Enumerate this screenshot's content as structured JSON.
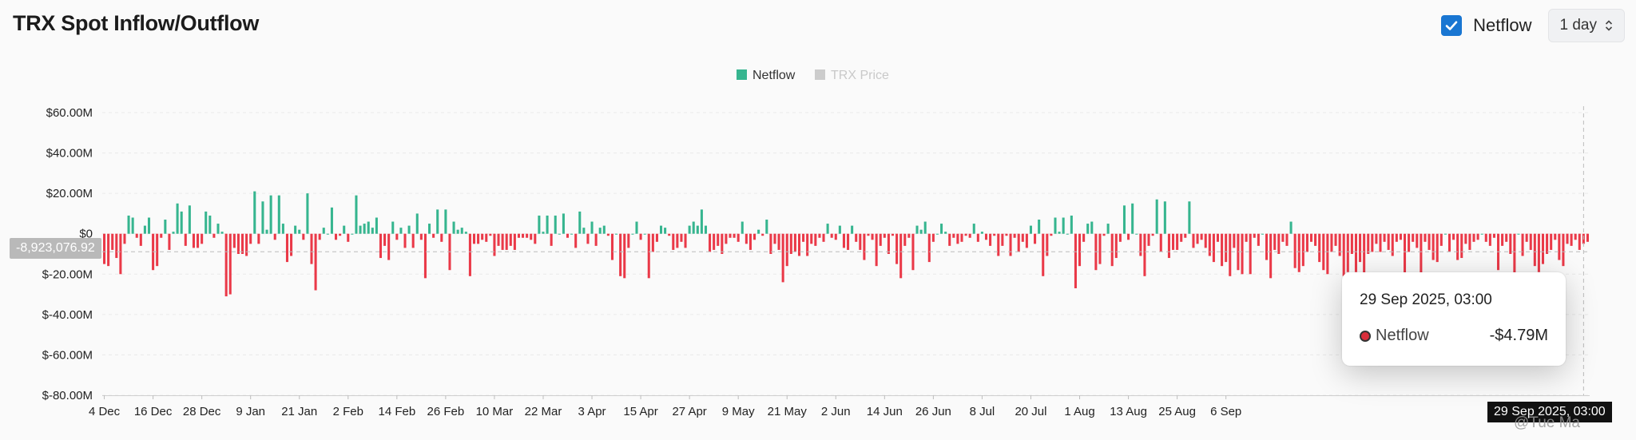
{
  "header": {
    "title": "TRX Spot Inflow/Outflow",
    "netflow_label": "Netflow",
    "netflow_checked": true,
    "interval_value": "1 day"
  },
  "legend": [
    {
      "label": "Netflow",
      "color": "#36b58f"
    },
    {
      "label": "TRX Price",
      "color": "#cccccc"
    }
  ],
  "tooltip": {
    "date": "29 Sep 2025, 03:00",
    "series": "Netflow",
    "value": "-$4.79M"
  },
  "crosshair": {
    "y_label": "-8,923,076.92",
    "x_label": "29 Sep 2025, 03:00"
  },
  "watermark": "@Tue Ma",
  "colors": {
    "positive": "#36b58f",
    "negative": "#ea3948"
  },
  "chart_data": {
    "type": "bar",
    "title": "TRX Spot Inflow/Outflow",
    "ylabel": "",
    "xlabel": "",
    "ylim": [
      -80,
      60
    ],
    "y_unit": "$M",
    "y_ticks": [
      "$60.00M",
      "$40.00M",
      "$20.00M",
      "$0",
      "$-20.00M",
      "$-40.00M",
      "$-60.00M",
      "$-80.00M"
    ],
    "y_tick_values": [
      60,
      40,
      20,
      0,
      -20,
      -40,
      -60,
      -80
    ],
    "x_ticks": [
      "4 Dec",
      "16 Dec",
      "28 Dec",
      "9 Jan",
      "21 Jan",
      "2 Feb",
      "14 Feb",
      "26 Feb",
      "10 Mar",
      "22 Mar",
      "3 Apr",
      "15 Apr",
      "27 Apr",
      "9 May",
      "21 May",
      "2 Jun",
      "14 Jun",
      "26 Jun",
      "8 Jul",
      "20 Jul",
      "1 Aug",
      "13 Aug",
      "25 Aug",
      "6 Sep"
    ],
    "grid": true,
    "legend_position": "top-center",
    "series": [
      {
        "name": "Netflow",
        "values": [
          -15,
          -16,
          -8,
          -12,
          -20,
          -5,
          9,
          8,
          -2,
          -6,
          4,
          8,
          -18,
          -16,
          -2,
          7,
          -8,
          1,
          15,
          11,
          -6,
          14,
          -7,
          -7,
          -5,
          11,
          9,
          -2,
          5,
          1,
          -31,
          -30,
          -7,
          -10,
          -10,
          -11,
          -5,
          21,
          -5,
          16,
          2,
          19,
          -3,
          19,
          5,
          -14,
          -11,
          4,
          2,
          -3,
          20,
          -15,
          -28,
          -3,
          3,
          0,
          13,
          -3,
          -1,
          4,
          -4,
          0,
          19,
          4,
          5,
          6,
          3,
          8,
          -12,
          -6,
          -13,
          6,
          -3,
          3,
          -7,
          4,
          -7,
          10,
          -3,
          -22,
          5,
          -2,
          12,
          -4,
          12,
          -18,
          6,
          2,
          3,
          1,
          -21,
          -5,
          -5,
          -3,
          -4,
          -1,
          -11,
          -6,
          -8,
          -8,
          -6,
          -8,
          -2,
          -2,
          -2,
          -3,
          -5,
          9,
          1,
          9,
          -6,
          9,
          0,
          10,
          -2,
          0,
          -7,
          11,
          3,
          -5,
          6,
          -6,
          3,
          4,
          -1,
          -13,
          0,
          -21,
          -22,
          -7,
          0,
          6,
          -3,
          0,
          -22,
          -9,
          -4,
          4,
          3,
          -1,
          -8,
          -7,
          -4,
          -7,
          4,
          6,
          4,
          12,
          4,
          -9,
          -8,
          -6,
          -10,
          -5,
          -2,
          -2,
          -4,
          6,
          -5,
          -8,
          -3,
          2,
          -1,
          7,
          -10,
          -5,
          -8,
          -24,
          -16,
          -10,
          -9,
          -11,
          -4,
          -11,
          -5,
          -6,
          -2,
          -4,
          5,
          -2,
          -3,
          4,
          -7,
          -8,
          4,
          -4,
          -8,
          -13,
          -1,
          -3,
          -16,
          -6,
          -2,
          -10,
          -1,
          -15,
          -22,
          -6,
          -2,
          -18,
          4,
          2,
          6,
          -14,
          -4,
          0,
          5,
          1,
          -6,
          -2,
          -5,
          -4,
          -1,
          -2,
          5,
          -4,
          1,
          -3,
          -6,
          -1,
          -11,
          -6,
          -1,
          -11,
          -2,
          -9,
          -4,
          -7,
          4,
          -5,
          7,
          -21,
          -11,
          -1,
          8,
          1,
          8,
          0,
          9,
          -27,
          -16,
          -4,
          5,
          6,
          -18,
          -15,
          -1,
          5,
          -16,
          -12,
          -4,
          14,
          -3,
          15,
          0,
          -11,
          -21,
          -6,
          -1,
          17,
          -9,
          16,
          -12,
          -8,
          -8,
          -4,
          -2,
          16,
          -7,
          -5,
          -3,
          -7,
          -11,
          -14,
          -4,
          -16,
          -14,
          -21,
          -7,
          -18,
          -20,
          -4,
          -20,
          -2,
          -6,
          0,
          -13,
          -22,
          -8,
          -10,
          -4,
          -6,
          6,
          -17,
          -19,
          -16,
          -9,
          -4,
          -6,
          -14,
          -18,
          -20,
          -9,
          -6,
          -11,
          -21,
          -19,
          -10,
          -19,
          -14,
          -22,
          -10,
          -9,
          -5,
          -9,
          -4,
          -8,
          -11,
          -4,
          -3,
          -22,
          -9,
          -4,
          -7,
          -21,
          -4,
          -8,
          -13,
          -14,
          -6,
          0,
          -9,
          -3,
          -13,
          -12,
          -5,
          -8,
          -4,
          -3,
          0,
          -4,
          -6,
          -2,
          -18,
          -6,
          -4,
          -10,
          -21,
          0,
          -11,
          -4,
          -8,
          -16,
          -19,
          -15,
          -10,
          -8,
          -3,
          -13,
          -16,
          -5,
          -6,
          -3,
          -8,
          -5,
          -4
        ]
      }
    ]
  }
}
